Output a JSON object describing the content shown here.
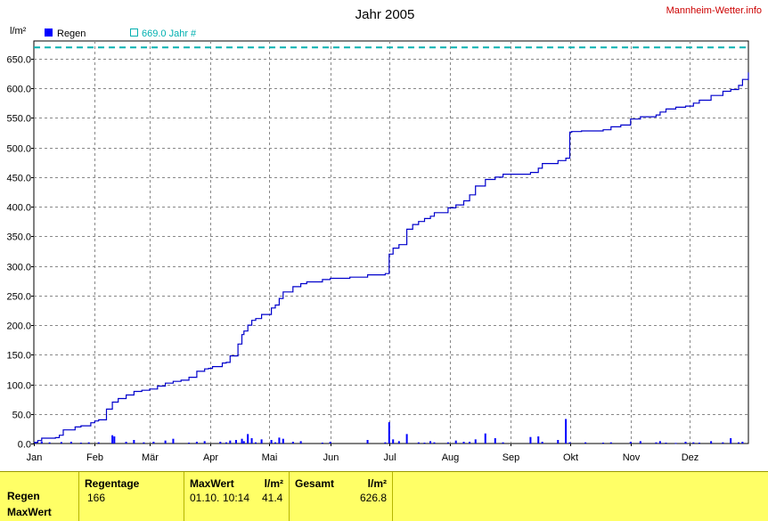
{
  "header": {
    "title": "Jahr 2005",
    "unit": "l/m²",
    "brand": "Mannheim-Wetter.info",
    "legend_regen": "Regen",
    "legend_reference": "669.0 Jahr #"
  },
  "colors": {
    "daily_bars": "#0000ff",
    "cumulative_line": "#0000cc",
    "reference_line": "#00b0b0",
    "footer_bg": "#ffff66"
  },
  "chart_data": {
    "type": "bar",
    "title": "Jahr 2005",
    "ylabel": "l/m²",
    "ylim": [
      0,
      680
    ],
    "yticks": [
      0,
      50,
      100,
      150,
      200,
      250,
      300,
      350,
      400,
      450,
      500,
      550,
      600,
      650
    ],
    "ytick_labels": [
      "0.0",
      "50.0",
      "100.0",
      "150.0",
      "200.0",
      "250.0",
      "300.0",
      "350.0",
      "400.0",
      "450.0",
      "500.0",
      "550.0",
      "600.0",
      "650.0"
    ],
    "xlim": [
      1,
      365
    ],
    "month_ticks": [
      1,
      32,
      60,
      91,
      121,
      152,
      182,
      213,
      244,
      274,
      305,
      335
    ],
    "month_labels": [
      "Jan",
      "Feb",
      "Mär",
      "Apr",
      "Mai",
      "Jun",
      "Jul",
      "Aug",
      "Sep",
      "Okt",
      "Nov",
      "Dez"
    ],
    "grid": true,
    "legend_position": "top-left",
    "reference_value": 669.0,
    "series": [
      {
        "name": "Regen",
        "kind": "bar",
        "x": [
          2,
          5,
          9,
          15,
          20,
          25,
          29,
          34,
          41,
          42,
          48,
          52,
          57,
          62,
          68,
          72,
          80,
          84,
          88,
          96,
          99,
          101,
          104,
          107,
          108,
          110,
          112,
          114,
          117,
          122,
          124,
          126,
          128,
          133,
          137,
          148,
          152,
          171,
          180,
          182,
          184,
          187,
          191,
          197,
          200,
          203,
          205,
          212,
          216,
          220,
          223,
          226,
          231,
          236,
          240,
          254,
          258,
          260,
          268,
          272,
          274,
          282,
          291,
          295,
          305,
          310,
          318,
          320,
          323,
          328,
          333,
          337,
          340,
          346,
          352,
          356,
          360,
          362
        ],
        "y": [
          1.5,
          3.5,
          2,
          2.5,
          3,
          1.5,
          2,
          2,
          14,
          12,
          3,
          6,
          2,
          3,
          5,
          8,
          1.5,
          3,
          4,
          3,
          2,
          5,
          6,
          8,
          4,
          16,
          9,
          2,
          7,
          6,
          2,
          10,
          8,
          3,
          4,
          1.5,
          3,
          6,
          2,
          36,
          7,
          4,
          16,
          2,
          1.5,
          4,
          2,
          2,
          5,
          3,
          3,
          7,
          17,
          9,
          2,
          11,
          12,
          3,
          6,
          41.4,
          2,
          2,
          1.5,
          2,
          3,
          4,
          2,
          4,
          1.5,
          1,
          3,
          2,
          1.5,
          4,
          2,
          9,
          2,
          3
        ]
      },
      {
        "name": "Gesamt",
        "kind": "cumulative",
        "x": [
          1,
          3,
          5,
          12,
          14,
          16,
          22,
          25,
          30,
          32,
          34,
          38,
          41,
          44,
          48,
          52,
          56,
          60,
          64,
          68,
          72,
          76,
          80,
          84,
          88,
          90,
          92,
          97,
          99,
          101,
          105,
          107,
          108,
          110,
          112,
          114,
          117,
          122,
          124,
          126,
          128,
          133,
          137,
          140,
          148,
          152,
          162,
          171,
          178,
          180,
          182,
          184,
          187,
          191,
          194,
          197,
          200,
          203,
          205,
          212,
          216,
          220,
          223,
          226,
          231,
          236,
          240,
          254,
          258,
          260,
          268,
          272,
          274,
          275,
          280,
          291,
          295,
          300,
          305,
          310,
          318,
          320,
          323,
          328,
          333,
          337,
          340,
          346,
          352,
          356,
          360,
          362,
          365
        ],
        "y": [
          2,
          5,
          9,
          10,
          14,
          23,
          28,
          30,
          35,
          38,
          40,
          58,
          70,
          76,
          82,
          88,
          90,
          92,
          97,
          102,
          105,
          107,
          112,
          122,
          126,
          127,
          130,
          136,
          137,
          148,
          168,
          184,
          190,
          200,
          208,
          211,
          218,
          229,
          234,
          245,
          256,
          265,
          270,
          273,
          277,
          279,
          281,
          285,
          285,
          287,
          320,
          330,
          336,
          362,
          370,
          375,
          380,
          384,
          390,
          398,
          403,
          410,
          420,
          435,
          446,
          450,
          455,
          458,
          465,
          473,
          478,
          482,
          526,
          527,
          528,
          530,
          535,
          538,
          548,
          552,
          555,
          560,
          565,
          568,
          570,
          575,
          580,
          588,
          595,
          598,
          605,
          615,
          626.8
        ]
      }
    ]
  },
  "footer": {
    "row_labels": [
      "Regen",
      "MaxWert"
    ],
    "regentage": {
      "label": "Regentage",
      "value": "166"
    },
    "maxwert": {
      "label": "MaxWert",
      "unit": "l/m²",
      "date": "01.10.",
      "time": "10:14",
      "value": "41.4"
    },
    "gesamt": {
      "label": "Gesamt",
      "unit": "l/m²",
      "value": "626.8"
    }
  }
}
